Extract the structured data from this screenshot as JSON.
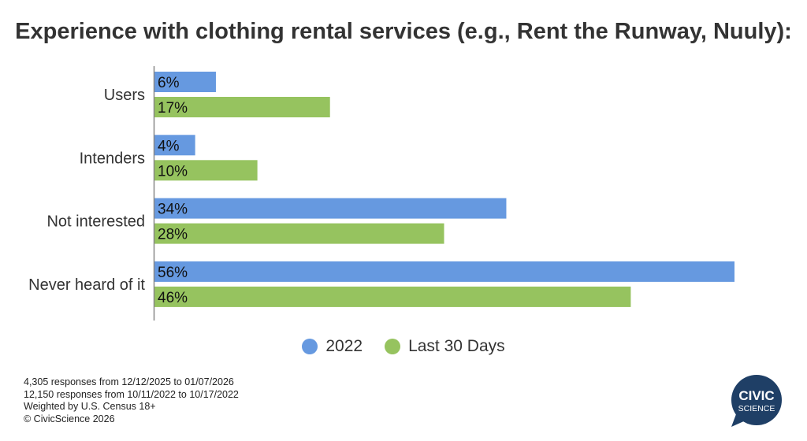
{
  "title": "Experience with clothing rental services (e.g., Rent the Runway, Nuuly):",
  "chart_data": {
    "type": "bar",
    "orientation": "horizontal",
    "title": "Experience with clothing rental services (e.g., Rent the Runway, Nuuly):",
    "categories": [
      "Users",
      "Intenders",
      "Not interested",
      "Never heard of it"
    ],
    "series": [
      {
        "name": "2022",
        "values": [
          6,
          4,
          34,
          56
        ],
        "labels": [
          "6%",
          "4%",
          "34%",
          "56%"
        ],
        "color": "#6699e0"
      },
      {
        "name": "Last 30 Days",
        "values": [
          17,
          10,
          28,
          46
        ],
        "labels": [
          "17%",
          "10%",
          "28%",
          "46%"
        ],
        "color": "#96c35f"
      }
    ],
    "xlim": [
      0,
      56
    ],
    "grid": false,
    "legend_placement": "bottom-center"
  },
  "footer": {
    "lines": [
      "4,305 responses from 12/12/2025 to 01/07/2026",
      "12,150 responses from 10/11/2022 to 10/17/2022",
      "Weighted by U.S. Census 18+",
      "© CivicScience 2026"
    ]
  },
  "logo": {
    "line1": "CIVIC",
    "line2": "SCIENCE",
    "color": "#1f3f66"
  }
}
